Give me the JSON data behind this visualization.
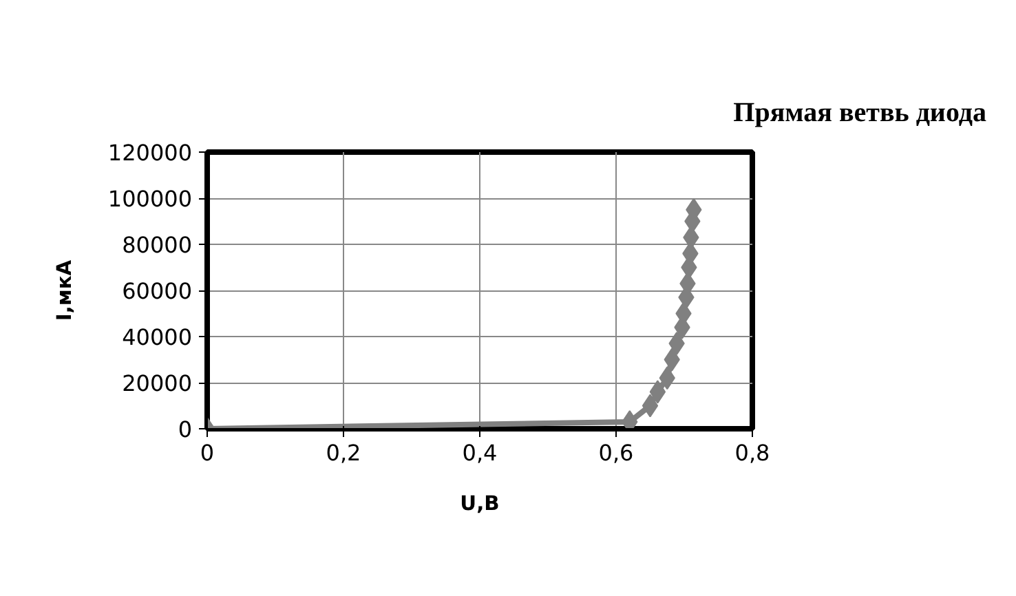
{
  "chart_data": {
    "type": "line",
    "title": "Прямая ветвь диода",
    "xlabel": "U,В",
    "ylabel": "I,мкА",
    "x": [
      0,
      0.62,
      0.65,
      0.661,
      0.675,
      0.682,
      0.689,
      0.697,
      0.699,
      0.703,
      0.705,
      0.707,
      0.709,
      0.71,
      0.712,
      0.714
    ],
    "series": [
      {
        "color": "#808080",
        "values": [
          0,
          3000,
          10000,
          16000,
          22000,
          30000,
          37000,
          44000,
          50000,
          57000,
          63000,
          70000,
          76000,
          83000,
          90000,
          95000
        ]
      }
    ],
    "xlim": [
      0,
      0.8
    ],
    "ylim": [
      0,
      120000
    ],
    "xticks": [
      0,
      {
        "value": 0.2,
        "label": "0,2"
      },
      {
        "value": 0.4,
        "label": "0,4"
      },
      {
        "value": 0.6,
        "label": "0,6"
      },
      {
        "value": 0.8,
        "label": "0,8"
      }
    ],
    "yticks": [
      0,
      20000,
      40000,
      60000,
      80000,
      100000,
      120000
    ],
    "grid": true,
    "marker": "diamond",
    "line_style": "solid"
  }
}
